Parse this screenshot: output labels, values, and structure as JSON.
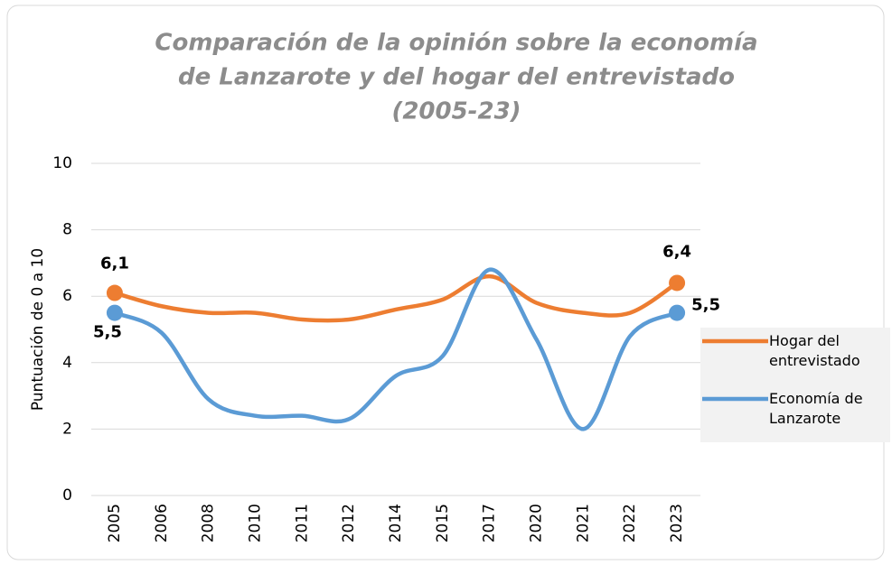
{
  "chart_data": {
    "type": "line",
    "title": [
      "Comparación de la opinión sobre la economía",
      "de Lanzarote y del hogar del entrevistado",
      "(2005-23)"
    ],
    "ylabel": "Puntuación de 0 a 10",
    "categories": [
      "2005",
      "2006",
      "2008",
      "2010",
      "2011",
      "2012",
      "2014",
      "2015",
      "2017",
      "2020",
      "2021",
      "2022",
      "2023"
    ],
    "series": [
      {
        "name": "Hogar del entrevistado",
        "color": "#ed7d31",
        "values": [
          6.1,
          5.7,
          5.5,
          5.5,
          5.3,
          5.3,
          5.6,
          5.9,
          6.6,
          5.8,
          5.5,
          5.5,
          6.4
        ],
        "value_labels": [
          "6,1",
          null,
          null,
          null,
          null,
          null,
          null,
          null,
          null,
          null,
          null,
          null,
          "6,4"
        ]
      },
      {
        "name": "Economía de Lanzarote",
        "color": "#5b9bd5",
        "values": [
          5.5,
          4.9,
          2.9,
          2.4,
          2.4,
          2.3,
          3.6,
          4.2,
          6.8,
          4.7,
          2.0,
          4.8,
          5.5
        ],
        "value_labels": [
          "5,5",
          null,
          null,
          null,
          null,
          null,
          null,
          null,
          null,
          null,
          null,
          null,
          "5,5"
        ]
      }
    ],
    "ylim": [
      0,
      10
    ],
    "yticks": [
      0,
      2,
      4,
      6,
      8,
      10
    ],
    "grid": true,
    "smooth": true,
    "legend": "right"
  }
}
